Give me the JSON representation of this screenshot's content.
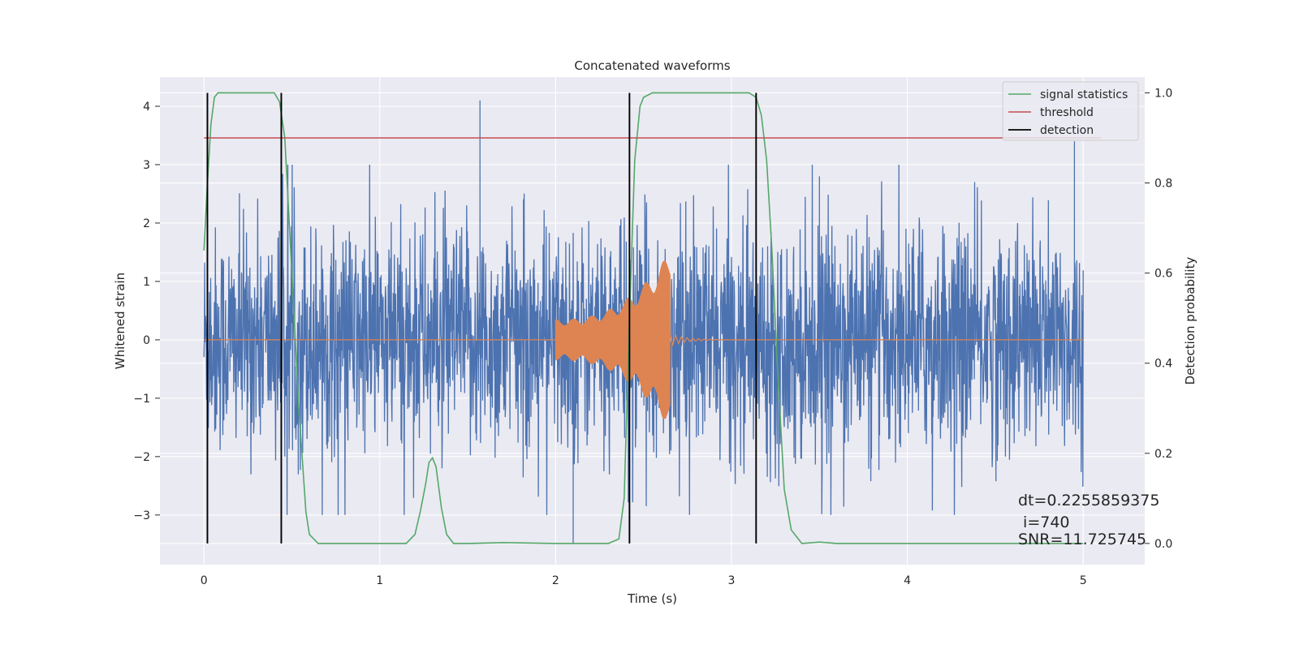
{
  "chart_data": {
    "type": "line",
    "title": "Concatenated waveforms",
    "xlabel": "Time (s)",
    "ylabel": "Whitened strain",
    "y2label": "Detection probability",
    "xlim": [
      -0.25,
      5.35
    ],
    "ylim": [
      -3.85,
      4.5
    ],
    "y2lim": [
      -0.047,
      1.035
    ],
    "xticks": [
      0,
      1,
      2,
      3,
      4,
      5
    ],
    "yticks": [
      -3,
      -2,
      -1,
      0,
      1,
      2,
      3,
      4
    ],
    "y2ticks": [
      0.0,
      0.2,
      0.4,
      0.6,
      0.8,
      1.0
    ],
    "xtick_labels": [
      "0",
      "1",
      "2",
      "3",
      "4",
      "5"
    ],
    "ytick_labels": [
      "−3",
      "−2",
      "−1",
      "0",
      "1",
      "2",
      "3",
      "4"
    ],
    "y2tick_labels": [
      "0.0",
      "0.2",
      "0.4",
      "0.6",
      "0.8",
      "1.0"
    ],
    "grid": true,
    "legend_position": "top-right",
    "legend": [
      "signal statistics",
      "threshold",
      "detection"
    ],
    "colors": {
      "strain": "#4c72b0",
      "template": "#dd8452",
      "statistics": "#55a868",
      "threshold": "#c44e52",
      "detection": "#000000",
      "background": "#eaeaf2",
      "grid": "#ffffff"
    },
    "series": [
      {
        "name": "signal statistics",
        "axis": "right",
        "x": [
          0.0,
          0.02,
          0.04,
          0.06,
          0.08,
          0.1,
          0.15,
          0.2,
          0.3,
          0.4,
          0.43,
          0.46,
          0.5,
          0.54,
          0.58,
          0.6,
          0.65,
          0.7,
          1.0,
          1.15,
          1.2,
          1.23,
          1.26,
          1.28,
          1.3,
          1.32,
          1.35,
          1.38,
          1.42,
          1.5,
          1.7,
          2.0,
          2.3,
          2.36,
          2.39,
          2.42,
          2.45,
          2.48,
          2.5,
          2.55,
          2.6,
          2.8,
          3.1,
          3.14,
          3.17,
          3.2,
          3.23,
          3.26,
          3.3,
          3.34,
          3.4,
          3.5,
          3.6,
          4.0,
          4.5,
          5.0
        ],
        "y": [
          0.65,
          0.8,
          0.93,
          0.99,
          1.0,
          1.0,
          1.0,
          1.0,
          1.0,
          1.0,
          0.98,
          0.9,
          0.6,
          0.3,
          0.07,
          0.02,
          0.0,
          0.0,
          0.0,
          0.0,
          0.02,
          0.07,
          0.13,
          0.18,
          0.19,
          0.17,
          0.08,
          0.02,
          0.0,
          0.0,
          0.002,
          0.0,
          0.0,
          0.01,
          0.1,
          0.5,
          0.85,
          0.97,
          0.99,
          1.0,
          1.0,
          1.0,
          1.0,
          0.99,
          0.95,
          0.85,
          0.65,
          0.4,
          0.12,
          0.03,
          0.0,
          0.003,
          0.0,
          0.0,
          0.0,
          0.0
        ]
      },
      {
        "name": "threshold",
        "axis": "right",
        "x": [
          0.0,
          5.1
        ],
        "y": [
          0.9,
          0.9
        ]
      }
    ],
    "detections": [
      0.02,
      0.44,
      2.42,
      3.14
    ],
    "strain_noise": {
      "x_start": 0.0,
      "x_end": 5.0,
      "std": 0.95
    },
    "strain_peaks": [
      {
        "x": 1.57,
        "y": 4.1
      },
      {
        "x": 0.46,
        "y": -2.0
      },
      {
        "x": 2.1,
        "y": -3.5
      },
      {
        "x": 3.5,
        "y": 2.8
      },
      {
        "x": 4.95,
        "y": 3.4
      }
    ],
    "chirp": {
      "x_start": 2.0,
      "x_end": 2.65,
      "amp_start": 0.35,
      "amp_end": 1.5,
      "tail_end": 3.3
    },
    "annotations": [
      "dt=0.2255859375",
      " i=740",
      "SNR=11.725745"
    ]
  }
}
